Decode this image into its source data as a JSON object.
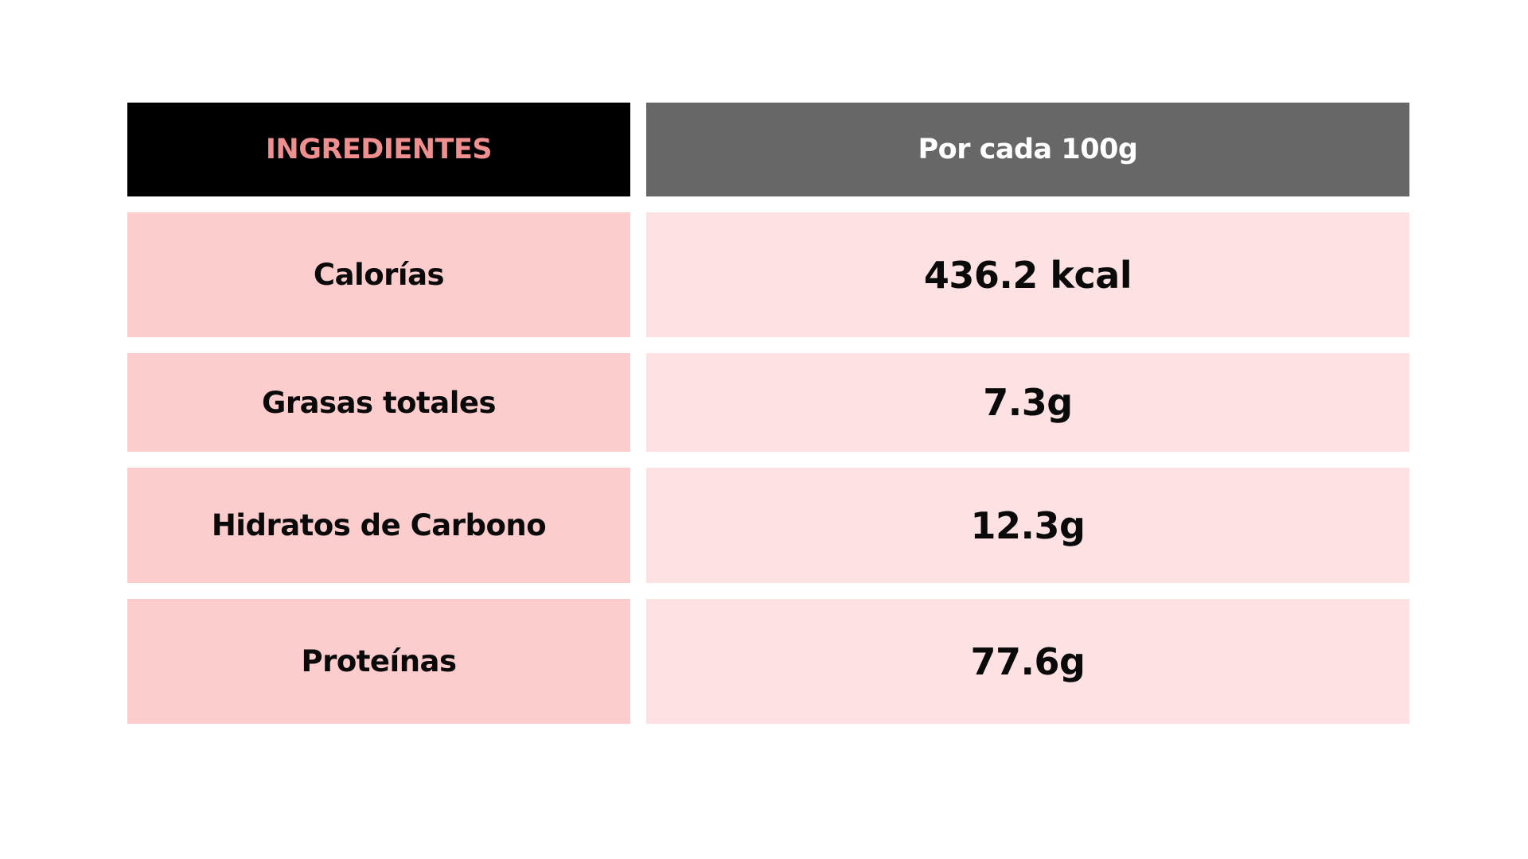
{
  "table": {
    "headers": [
      "INGREDIENTES",
      "Por cada 100g"
    ],
    "rows": [
      {
        "label": "Calorías",
        "value": "436.2 kcal"
      },
      {
        "label": "Grasas totales",
        "value": "7.3g"
      },
      {
        "label": "Hidratos de Carbono",
        "value": "12.3g"
      },
      {
        "label": "Proteínas",
        "value": "77.6g"
      }
    ]
  },
  "colors": {
    "header_left_bg": "#000000",
    "header_left_text": "#f08f8f",
    "header_right_bg": "#676767",
    "header_right_text": "#ffffff",
    "label_cell_bg": "#fdcccd",
    "value_cell_bg": "#fee1e2"
  }
}
